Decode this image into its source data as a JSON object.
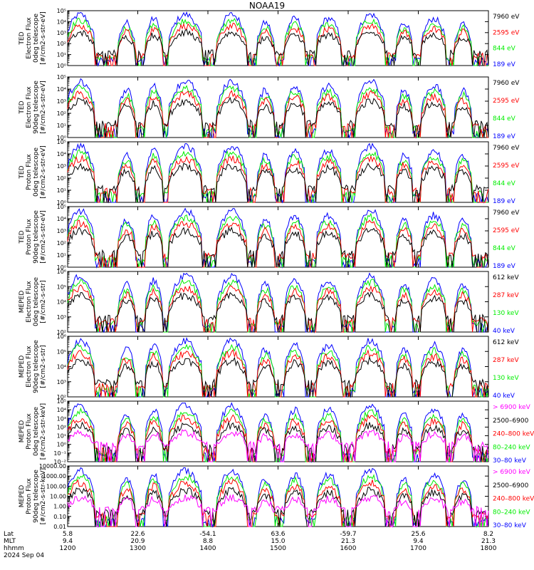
{
  "title": "NOAA19",
  "colors": {
    "blue": "#0000ff",
    "red": "#ff0000",
    "green": "#00ee00",
    "black": "#000000",
    "magenta": "#ff00ff"
  },
  "chart_data": [
    {
      "type": "line",
      "id": "p1",
      "ylabel": [
        "TED",
        "Electron Flux",
        "0deg telescope",
        "[#/cm2-s-str-eV]"
      ],
      "ylim": [
        1,
        100000
      ],
      "log": true,
      "yticks": [
        "10⁰",
        "10¹",
        "10²",
        "10³",
        "10⁴",
        "10⁵"
      ],
      "series": [
        {
          "name": "7960 eV",
          "color": "#000000"
        },
        {
          "name": "2595 eV",
          "color": "#ff0000"
        },
        {
          "name": "844 eV",
          "color": "#00ee00"
        },
        {
          "name": "189 eV",
          "color": "#0000ff"
        }
      ]
    },
    {
      "type": "line",
      "id": "p2",
      "ylabel": [
        "TED",
        "Electron Flux",
        "90deg telescope",
        "[#/cm2-s-str-eV]"
      ],
      "ylim": [
        1,
        100000
      ],
      "log": true,
      "yticks": [
        "10⁰",
        "10¹",
        "10²",
        "10³",
        "10⁴",
        "10⁵"
      ],
      "series": [
        {
          "name": "7960 eV",
          "color": "#000000"
        },
        {
          "name": "2595 eV",
          "color": "#ff0000"
        },
        {
          "name": "844 eV",
          "color": "#00ee00"
        },
        {
          "name": "189 eV",
          "color": "#0000ff"
        }
      ]
    },
    {
      "type": "line",
      "id": "p3",
      "ylabel": [
        "TED",
        "Proton Flux",
        "0deg telescope",
        "[#/cm2-s-str-eV]"
      ],
      "ylim": [
        1,
        100000
      ],
      "log": true,
      "yticks": [
        "10⁰",
        "10¹",
        "10²",
        "10³",
        "10⁴",
        "10⁵"
      ],
      "series": [
        {
          "name": "7960 eV",
          "color": "#000000"
        },
        {
          "name": "2595 eV",
          "color": "#ff0000"
        },
        {
          "name": "844 eV",
          "color": "#00ee00"
        },
        {
          "name": "189 eV",
          "color": "#0000ff"
        }
      ]
    },
    {
      "type": "line",
      "id": "p4",
      "ylabel": [
        "TED",
        "Proton Flux",
        "90deg telescope",
        "[#/cm2-s-str-eV]"
      ],
      "ylim": [
        1,
        100000
      ],
      "log": true,
      "yticks": [
        "10⁰",
        "10¹",
        "10²",
        "10³",
        "10⁴",
        "10⁵"
      ],
      "series": [
        {
          "name": "7960 eV",
          "color": "#000000"
        },
        {
          "name": "2595 eV",
          "color": "#ff0000"
        },
        {
          "name": "844 eV",
          "color": "#00ee00"
        },
        {
          "name": "189 eV",
          "color": "#0000ff"
        }
      ]
    },
    {
      "type": "line",
      "id": "p5",
      "ylabel": [
        "MEPED",
        "Electron Flux",
        "0deg telescope",
        "[#/cm2-s-str]"
      ],
      "ylim": [
        100,
        1000000
      ],
      "log": true,
      "yticks": [
        "10²",
        "10³",
        "10⁴",
        "10⁵",
        "10⁶"
      ],
      "series": [
        {
          "name": "612 keV",
          "color": "#000000"
        },
        {
          "name": "287 keV",
          "color": "#ff0000"
        },
        {
          "name": "130 keV",
          "color": "#00ee00"
        },
        {
          "name": "40 keV",
          "color": "#0000ff"
        }
      ]
    },
    {
      "type": "line",
      "id": "p6",
      "ylabel": [
        "MEPED",
        "Electron Flux",
        "90deg telescope",
        "[#/cm2-s-str]"
      ],
      "ylim": [
        100,
        1000000
      ],
      "log": true,
      "yticks": [
        "10²",
        "10³",
        "10⁴",
        "10⁵",
        "10⁶"
      ],
      "series": [
        {
          "name": "612 keV",
          "color": "#000000"
        },
        {
          "name": "287 keV",
          "color": "#ff0000"
        },
        {
          "name": "130 keV",
          "color": "#00ee00"
        },
        {
          "name": "40 keV",
          "color": "#0000ff"
        }
      ]
    },
    {
      "type": "line",
      "id": "p7",
      "ylabel": [
        "MEPED",
        "Proton Flux",
        "0deg telescope",
        "[#/cm2-s-str-keV]"
      ],
      "ylim": [
        0.01,
        100000
      ],
      "log": true,
      "yticks": [
        "10⁻²",
        "10⁻¹",
        "10⁰",
        "10¹",
        "10²",
        "10³",
        "10⁴",
        "10⁵"
      ],
      "series": [
        {
          "name": "> 6900 keV",
          "color": "#ff00ff"
        },
        {
          "name": "2500–6900",
          "color": "#000000"
        },
        {
          "name": "240–800 keV",
          "color": "#ff0000"
        },
        {
          "name": "80–240 keV",
          "color": "#00ee00"
        },
        {
          "name": "30–80 keV",
          "color": "#0000ff"
        }
      ]
    },
    {
      "type": "line",
      "id": "p8",
      "ylabel": [
        "MEPED",
        "Proton Flux",
        "90deg telescope",
        "[#/cm2-s-str-keV]"
      ],
      "ylim": [
        0.01,
        10000
      ],
      "log": true,
      "yticks": [
        "0.01",
        "0.10",
        "1.00",
        "10.00",
        "100.00",
        "1000.00",
        "10000.00"
      ],
      "series": [
        {
          "name": "> 6900 keV",
          "color": "#ff00ff"
        },
        {
          "name": "2500–6900",
          "color": "#000000"
        },
        {
          "name": "240–800 keV",
          "color": "#ff0000"
        },
        {
          "name": "80–240 keV",
          "color": "#00ee00"
        },
        {
          "name": "30–80 keV",
          "color": "#0000ff"
        }
      ]
    }
  ],
  "xaxis": {
    "row_labels": [
      "Lat",
      "MLT",
      "hhmm",
      "2024 Sep 04"
    ],
    "ticks": [
      {
        "lat": "5.8",
        "mlt": "9.4",
        "hhmm": "1200"
      },
      {
        "lat": "22.6",
        "mlt": "20.9",
        "hhmm": "1300"
      },
      {
        "lat": "-54.1",
        "mlt": "8.8",
        "hhmm": "1400"
      },
      {
        "lat": "63.6",
        "mlt": "15.0",
        "hhmm": "1500"
      },
      {
        "lat": "-59.7",
        "mlt": "21.3",
        "hhmm": "1600"
      },
      {
        "lat": "25.6",
        "mlt": "9.4",
        "hhmm": "1700"
      },
      {
        "lat": "8.2",
        "mlt": "21.3",
        "hhmm": "1800"
      }
    ]
  }
}
